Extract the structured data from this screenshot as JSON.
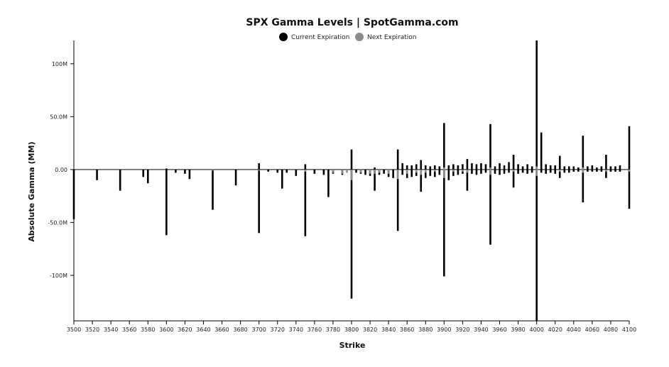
{
  "chart_data": {
    "type": "bar",
    "title": "SPX Gamma Levels | SpotGamma.com",
    "xlabel": "Strike",
    "ylabel": "Absolute Gamma (MM)",
    "xlim": [
      3500,
      4100
    ],
    "ylim": [
      -143,
      122
    ],
    "y_ticks": [
      100,
      50,
      0,
      -50,
      -100
    ],
    "y_tick_labels": [
      "100M",
      "50.0M",
      "0.00",
      "-50.0M",
      "-100M"
    ],
    "x_ticks": [
      3500,
      3520,
      3540,
      3560,
      3580,
      3600,
      3620,
      3640,
      3660,
      3680,
      3700,
      3720,
      3740,
      3760,
      3780,
      3800,
      3820,
      3840,
      3860,
      3880,
      3900,
      3920,
      3940,
      3960,
      3980,
      4000,
      4020,
      4040,
      4060,
      4080,
      4100
    ],
    "legend": {
      "placement": "top-center"
    },
    "series": [
      {
        "name": "Current Expiration",
        "color": "#000000",
        "points": [
          [
            3500,
            -47
          ],
          [
            3525,
            -10
          ],
          [
            3550,
            -20
          ],
          [
            3575,
            -7
          ],
          [
            3580,
            -13
          ],
          [
            3600,
            -62
          ],
          [
            3600,
            1
          ],
          [
            3610,
            -3
          ],
          [
            3620,
            -4
          ],
          [
            3625,
            -9
          ],
          [
            3650,
            -38
          ],
          [
            3675,
            -15
          ],
          [
            3700,
            -60
          ],
          [
            3700,
            6
          ],
          [
            3710,
            -2
          ],
          [
            3720,
            -3
          ],
          [
            3725,
            -18
          ],
          [
            3730,
            -3
          ],
          [
            3740,
            -6
          ],
          [
            3750,
            -63
          ],
          [
            3750,
            5
          ],
          [
            3760,
            -4
          ],
          [
            3770,
            -5
          ],
          [
            3775,
            -26
          ],
          [
            3780,
            -4
          ],
          [
            3790,
            -5
          ],
          [
            3800,
            -122
          ],
          [
            3800,
            19
          ],
          [
            3805,
            -3
          ],
          [
            3810,
            -4
          ],
          [
            3815,
            -5
          ],
          [
            3820,
            -6
          ],
          [
            3825,
            -20
          ],
          [
            3825,
            2
          ],
          [
            3830,
            -5
          ],
          [
            3835,
            -4
          ],
          [
            3840,
            -7
          ],
          [
            3845,
            -8
          ],
          [
            3850,
            -58
          ],
          [
            3850,
            19
          ],
          [
            3855,
            -5
          ],
          [
            3855,
            6
          ],
          [
            3860,
            -8
          ],
          [
            3860,
            4
          ],
          [
            3865,
            -7
          ],
          [
            3865,
            4
          ],
          [
            3870,
            -6
          ],
          [
            3870,
            5
          ],
          [
            3875,
            -21
          ],
          [
            3875,
            9
          ],
          [
            3880,
            -8
          ],
          [
            3880,
            4
          ],
          [
            3885,
            -6
          ],
          [
            3885,
            3
          ],
          [
            3890,
            -7
          ],
          [
            3890,
            4
          ],
          [
            3895,
            -5
          ],
          [
            3895,
            3
          ],
          [
            3900,
            -101
          ],
          [
            3900,
            44
          ],
          [
            3905,
            -10
          ],
          [
            3905,
            4
          ],
          [
            3910,
            -6
          ],
          [
            3910,
            5
          ],
          [
            3915,
            -5
          ],
          [
            3915,
            4
          ],
          [
            3920,
            -4
          ],
          [
            3920,
            5
          ],
          [
            3925,
            -20
          ],
          [
            3925,
            10
          ],
          [
            3930,
            -4
          ],
          [
            3930,
            6
          ],
          [
            3935,
            -5
          ],
          [
            3935,
            5
          ],
          [
            3940,
            -4
          ],
          [
            3940,
            6
          ],
          [
            3945,
            -3
          ],
          [
            3945,
            5
          ],
          [
            3950,
            -71
          ],
          [
            3950,
            43
          ],
          [
            3955,
            -4
          ],
          [
            3955,
            3
          ],
          [
            3960,
            -5
          ],
          [
            3960,
            6
          ],
          [
            3965,
            -4
          ],
          [
            3965,
            4
          ],
          [
            3970,
            -3
          ],
          [
            3970,
            7
          ],
          [
            3975,
            -17
          ],
          [
            3975,
            14
          ],
          [
            3980,
            -4
          ],
          [
            3980,
            5
          ],
          [
            3985,
            -3
          ],
          [
            3985,
            3
          ],
          [
            3990,
            -4
          ],
          [
            3990,
            5
          ],
          [
            3995,
            -3
          ],
          [
            3995,
            3
          ],
          [
            4000,
            -143
          ],
          [
            4000,
            122
          ],
          [
            4005,
            -3
          ],
          [
            4005,
            35
          ],
          [
            4010,
            -4
          ],
          [
            4010,
            5
          ],
          [
            4015,
            -3
          ],
          [
            4015,
            4
          ],
          [
            4020,
            -4
          ],
          [
            4020,
            4
          ],
          [
            4025,
            -8
          ],
          [
            4025,
            13
          ],
          [
            4030,
            -3
          ],
          [
            4030,
            3
          ],
          [
            4035,
            -3
          ],
          [
            4035,
            3
          ],
          [
            4040,
            -2
          ],
          [
            4040,
            3
          ],
          [
            4045,
            -2
          ],
          [
            4045,
            2
          ],
          [
            4050,
            -31
          ],
          [
            4050,
            32
          ],
          [
            4055,
            -2
          ],
          [
            4055,
            3
          ],
          [
            4060,
            -2
          ],
          [
            4060,
            4
          ],
          [
            4065,
            -2
          ],
          [
            4065,
            2
          ],
          [
            4070,
            -2
          ],
          [
            4070,
            3
          ],
          [
            4075,
            -8
          ],
          [
            4075,
            14
          ],
          [
            4080,
            -2
          ],
          [
            4080,
            3
          ],
          [
            4085,
            -2
          ],
          [
            4085,
            3
          ],
          [
            4090,
            -2
          ],
          [
            4090,
            4
          ],
          [
            4100,
            -37
          ],
          [
            4100,
            41
          ]
        ]
      },
      {
        "name": "Next Expiration",
        "color": "#8c8c8c",
        "points": [
          [
            3650,
            -1
          ],
          [
            3700,
            -1
          ],
          [
            3750,
            -2
          ],
          [
            3780,
            -3
          ],
          [
            3790,
            -4
          ],
          [
            3795,
            -3
          ],
          [
            3800,
            -10
          ],
          [
            3810,
            -3
          ],
          [
            3820,
            -4
          ],
          [
            3825,
            -4
          ],
          [
            3830,
            -3
          ],
          [
            3840,
            -4
          ],
          [
            3850,
            -9
          ],
          [
            3860,
            -4
          ],
          [
            3870,
            -3
          ],
          [
            3875,
            -5
          ],
          [
            3880,
            -3
          ],
          [
            3890,
            -2
          ],
          [
            3900,
            -8
          ],
          [
            3900,
            2
          ],
          [
            3910,
            -2
          ],
          [
            3920,
            -2
          ],
          [
            3925,
            -3
          ],
          [
            3950,
            -5
          ],
          [
            3950,
            2
          ],
          [
            3975,
            -2
          ],
          [
            4000,
            -6
          ],
          [
            4000,
            3
          ],
          [
            4025,
            -2
          ],
          [
            4050,
            -3
          ],
          [
            4050,
            2
          ],
          [
            4075,
            -2
          ],
          [
            4100,
            -2
          ]
        ]
      }
    ]
  }
}
